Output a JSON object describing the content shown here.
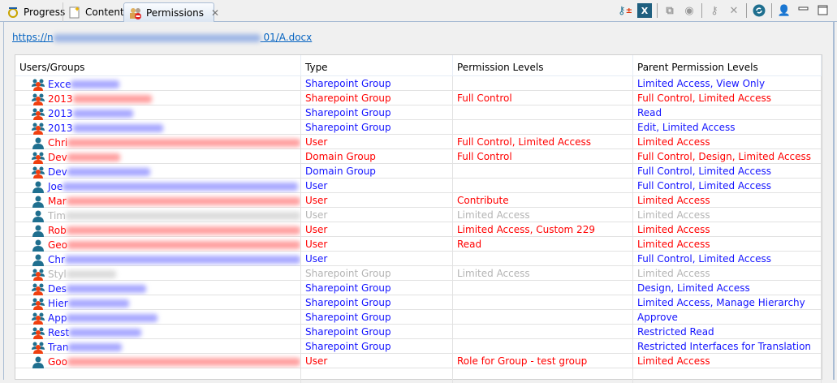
{
  "tabs": [
    {
      "label": "Progress",
      "icon": "progress-icon"
    },
    {
      "label": "Contents",
      "icon": "contents-icon"
    },
    {
      "label": "Permissions",
      "icon": "permissions-icon",
      "active": true
    }
  ],
  "toolbar": [
    "add-remove-permission-icon",
    "export-excel-icon",
    "copy-window-icon",
    "preview-icon",
    "edit-permission-icon",
    "delete-icon",
    "refresh-icon",
    "user-lock-icon",
    "minimize-icon",
    "maximize-icon"
  ],
  "url": {
    "prefix": "https://n",
    "suffix": "01/A.docx"
  },
  "colors": {
    "blue": "#1414ff",
    "red": "#ff0000",
    "gray": "#b4b4b4",
    "link": "#0563c1"
  },
  "columns": [
    "Users/Groups",
    "Type",
    "Permission Levels",
    "Parent Permission Levels"
  ],
  "rows": [
    {
      "name": "Exce",
      "kind": "group",
      "color": "blue",
      "type": "Sharepoint Group",
      "perm": "",
      "parent": "Limited Access, View Only"
    },
    {
      "name": "2013",
      "kind": "group",
      "color": "red",
      "type": "Sharepoint Group",
      "perm": "Full Control",
      "parent": "Full Control, Limited Access"
    },
    {
      "name": "2013",
      "kind": "group",
      "color": "blue",
      "type": "Sharepoint Group",
      "perm": "",
      "parent": "Read"
    },
    {
      "name": "2013",
      "kind": "group",
      "color": "blue",
      "type": "Sharepoint Group",
      "perm": "",
      "parent": "Edit, Limited Access"
    },
    {
      "name": "Chri",
      "kind": "user",
      "color": "red",
      "type": "User",
      "perm": "Full Control, Limited Access",
      "parent": "Limited Access"
    },
    {
      "name": "Dev",
      "kind": "group",
      "color": "red",
      "type": "Domain Group",
      "perm": "Full Control",
      "parent": "Full Control, Design, Limited Access"
    },
    {
      "name": "Dev",
      "kind": "group",
      "color": "blue",
      "type": "Domain Group",
      "perm": "",
      "parent": "Full Control, Limited Access"
    },
    {
      "name": "Joe",
      "kind": "user",
      "color": "blue",
      "type": "User",
      "perm": "",
      "parent": "Full Control, Limited Access"
    },
    {
      "name": "Mar",
      "kind": "user",
      "color": "red",
      "type": "User",
      "perm": "Contribute",
      "parent": "Limited Access"
    },
    {
      "name": "Tim",
      "kind": "user",
      "color": "gray",
      "type": "User",
      "perm": "Limited Access",
      "parent": "Limited Access"
    },
    {
      "name": "Rob",
      "kind": "user",
      "color": "red",
      "type": "User",
      "perm": "Limited Access, Custom 229",
      "parent": "Limited Access"
    },
    {
      "name": "Geo",
      "kind": "user",
      "color": "red",
      "type": "User",
      "perm": "Read",
      "parent": "Limited Access"
    },
    {
      "name": "Chr",
      "kind": "user",
      "color": "blue",
      "type": "User",
      "perm": "",
      "parent": "Full Control, Limited Access"
    },
    {
      "name": "Styl",
      "kind": "group",
      "color": "gray",
      "type": "Sharepoint Group",
      "perm": "Limited Access",
      "parent": "Limited Access"
    },
    {
      "name": "Des",
      "kind": "group",
      "color": "blue",
      "type": "Sharepoint Group",
      "perm": "",
      "parent": "Design, Limited Access"
    },
    {
      "name": "Hier",
      "kind": "group",
      "color": "blue",
      "type": "Sharepoint Group",
      "perm": "",
      "parent": "Limited Access, Manage Hierarchy"
    },
    {
      "name": "App",
      "kind": "group",
      "color": "blue",
      "type": "Sharepoint Group",
      "perm": "",
      "parent": "Approve"
    },
    {
      "name": "Rest",
      "kind": "group",
      "color": "blue",
      "type": "Sharepoint Group",
      "perm": "",
      "parent": "Restricted Read"
    },
    {
      "name": "Tran",
      "kind": "group",
      "color": "blue",
      "type": "Sharepoint Group",
      "perm": "",
      "parent": "Restricted Interfaces for Translation"
    },
    {
      "name": "Goo",
      "kind": "user",
      "color": "red",
      "type": "User",
      "perm": "Role for Group - test group",
      "parent": "Limited Access"
    }
  ]
}
